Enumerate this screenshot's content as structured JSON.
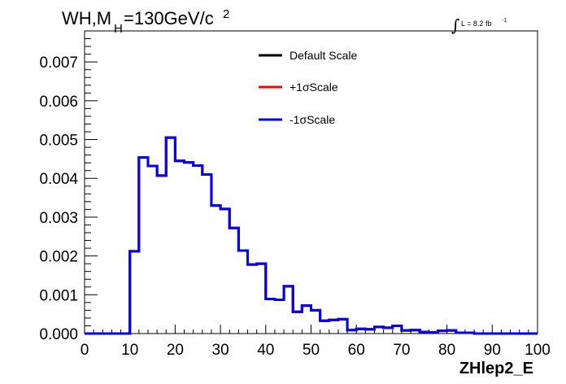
{
  "chart_data": {
    "type": "line",
    "title_main": "WH,M",
    "title_sub": "H",
    "title_value": "=130GeV/c",
    "title_sup": "2",
    "lumi_text": "L = 8.2 fb",
    "lumi_sup": "-1",
    "xlabel": "ZHlep2_E",
    "xlim": [
      0,
      100
    ],
    "ylim": [
      0,
      0.0078
    ],
    "x_ticks": [
      0,
      10,
      20,
      30,
      40,
      50,
      60,
      70,
      80,
      90,
      100
    ],
    "x_tick_labels": [
      "0",
      "10",
      "20",
      "30",
      "40",
      "50",
      "60",
      "70",
      "80",
      "90",
      "100"
    ],
    "y_ticks": [
      0,
      0.001,
      0.002,
      0.003,
      0.004,
      0.005,
      0.006,
      0.007
    ],
    "y_tick_labels": [
      "0.000",
      "0.001",
      "0.002",
      "0.003",
      "0.004",
      "0.005",
      "0.006",
      "0.007"
    ],
    "bin_edges": [
      0,
      2,
      4,
      6,
      8,
      10,
      12,
      14,
      16,
      18,
      20,
      22,
      24,
      26,
      28,
      30,
      32,
      34,
      36,
      38,
      40,
      42,
      44,
      46,
      48,
      50,
      52,
      54,
      56,
      58,
      60,
      62,
      64,
      66,
      68,
      70,
      72,
      74,
      76,
      78,
      80,
      82,
      84,
      86,
      88,
      90,
      92,
      94,
      96,
      98,
      100
    ],
    "series": [
      {
        "name": "Default Scale",
        "color": "#000000",
        "values": [
          0,
          0,
          0,
          0,
          0,
          0.00212,
          0.00454,
          0.00432,
          0.00407,
          0.00505,
          0.00445,
          0.00441,
          0.00433,
          0.0041,
          0.0033,
          0.00321,
          0.00272,
          0.00214,
          0.00178,
          0.0018,
          0.00089,
          0.00087,
          0.00122,
          0.00056,
          0.00072,
          0.0006,
          0.00033,
          0.00035,
          0.00037,
          9e-05,
          0.00012,
          0.00011,
          0.00017,
          0.00015,
          0.0002,
          8e-05,
          9e-05,
          4e-05,
          3e-05,
          7e-05,
          8e-05,
          2e-05,
          2e-05,
          0.0,
          0.0,
          0.0,
          0.0,
          0.0,
          0.0,
          0.0
        ]
      },
      {
        "name": "+1σScale",
        "color": "#ff0000",
        "values": [
          0,
          0,
          0,
          0,
          0,
          0.00212,
          0.00454,
          0.00432,
          0.00407,
          0.00505,
          0.00445,
          0.00441,
          0.00433,
          0.0041,
          0.0033,
          0.00321,
          0.00272,
          0.00214,
          0.00178,
          0.0018,
          0.00089,
          0.00087,
          0.00122,
          0.00056,
          0.00072,
          0.0006,
          0.00033,
          0.00035,
          0.00037,
          9e-05,
          0.00012,
          0.00011,
          0.00017,
          0.00015,
          0.0002,
          8e-05,
          9e-05,
          4e-05,
          3e-05,
          7e-05,
          8e-05,
          2e-05,
          2e-05,
          0.0,
          0.0,
          0.0,
          0.0,
          0.0,
          0.0,
          0.0
        ]
      },
      {
        "name": "-1σScale",
        "color": "#0000ee",
        "values": [
          0,
          0,
          0,
          0,
          0,
          0.00212,
          0.00454,
          0.00432,
          0.00407,
          0.00505,
          0.00445,
          0.00441,
          0.00433,
          0.0041,
          0.0033,
          0.00321,
          0.00272,
          0.00214,
          0.00178,
          0.0018,
          0.00089,
          0.00087,
          0.00122,
          0.00056,
          0.00072,
          0.0006,
          0.00033,
          0.00035,
          0.00037,
          9e-05,
          0.00012,
          0.00011,
          0.00017,
          0.00015,
          0.0002,
          8e-05,
          9e-05,
          4e-05,
          3e-05,
          7e-05,
          8e-05,
          2e-05,
          2e-05,
          0.0,
          0.0,
          0.0,
          0.0,
          0.0,
          0.0,
          0.0
        ]
      }
    ],
    "legend_position": "top-center"
  }
}
